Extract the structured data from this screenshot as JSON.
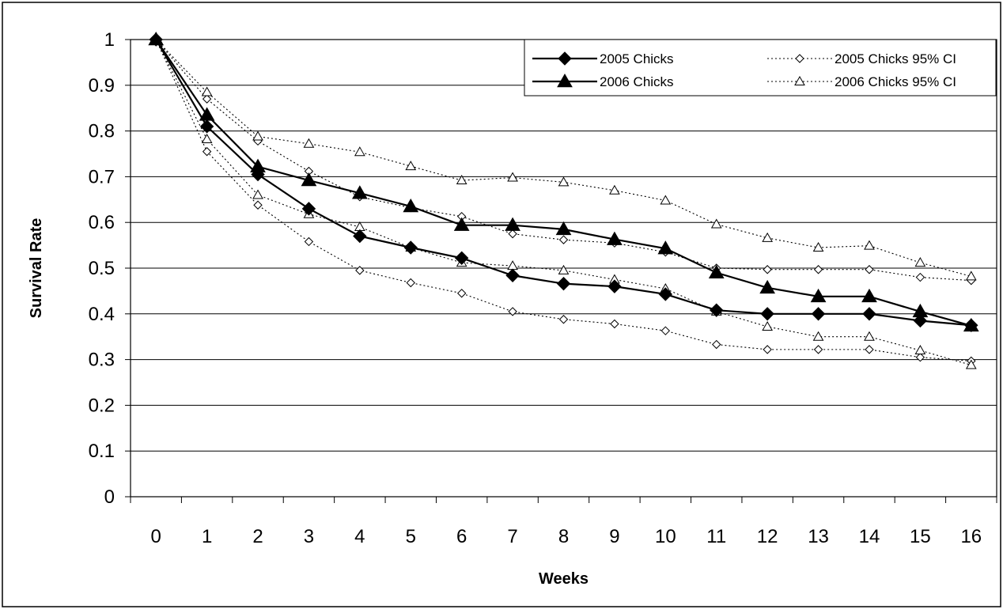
{
  "chart_data": {
    "type": "line",
    "title": "",
    "xlabel": "Weeks",
    "ylabel": "Survival Rate",
    "categories": [
      "0",
      "1",
      "2",
      "3",
      "4",
      "5",
      "6",
      "7",
      "8",
      "9",
      "10",
      "11",
      "12",
      "13",
      "14",
      "15",
      "16"
    ],
    "x": [
      0,
      1,
      2,
      3,
      4,
      5,
      6,
      7,
      8,
      9,
      10,
      11,
      12,
      13,
      14,
      15,
      16
    ],
    "ylim": [
      0,
      1
    ],
    "yticks": [
      "0",
      "0.1",
      "0.2",
      "0.3",
      "0.4",
      "0.5",
      "0.6",
      "0.7",
      "0.8",
      "0.9",
      "1"
    ],
    "grid": "horizontal",
    "legend_position": "top-right",
    "series": [
      {
        "name": "2005 Chicks",
        "marker": "diamond",
        "filled": true,
        "line": "solid",
        "color": "#000000",
        "values": [
          1.0,
          0.81,
          0.705,
          0.63,
          0.57,
          0.545,
          0.522,
          0.484,
          0.466,
          0.46,
          0.443,
          0.408,
          0.4,
          0.4,
          0.4,
          0.385,
          0.375
        ]
      },
      {
        "name": "2006 Chicks",
        "marker": "triangle",
        "filled": true,
        "line": "solid",
        "color": "#000000",
        "values": [
          1.0,
          0.835,
          0.722,
          0.692,
          0.664,
          0.635,
          0.594,
          0.594,
          0.585,
          0.563,
          0.543,
          0.49,
          0.457,
          0.438,
          0.438,
          0.405,
          0.374
        ]
      },
      {
        "name": "2005 Chicks 95% CI",
        "marker": "diamond",
        "filled": false,
        "line": "dotted",
        "color": "#000000",
        "values": [
          1.0,
          0.87,
          0.778,
          0.712,
          0.656,
          0.632,
          0.613,
          0.575,
          0.562,
          0.555,
          0.535,
          0.5,
          0.497,
          0.497,
          0.497,
          0.48,
          0.473
        ]
      },
      {
        "name": "2005 Chicks 95% CI",
        "legend": false,
        "marker": "diamond",
        "filled": false,
        "line": "dotted",
        "color": "#000000",
        "values": [
          1.0,
          0.755,
          0.638,
          0.558,
          0.495,
          0.468,
          0.445,
          0.405,
          0.388,
          0.378,
          0.363,
          0.333,
          0.322,
          0.322,
          0.322,
          0.305,
          0.297
        ]
      },
      {
        "name": "2006 Chicks 95% CI",
        "marker": "triangle",
        "filled": false,
        "line": "dotted",
        "color": "#000000",
        "values": [
          1.0,
          0.885,
          0.788,
          0.772,
          0.754,
          0.723,
          0.692,
          0.698,
          0.688,
          0.67,
          0.648,
          0.596,
          0.566,
          0.545,
          0.549,
          0.512,
          0.482
        ]
      },
      {
        "name": "2006 Chicks 95% CI",
        "legend": false,
        "marker": "triangle",
        "filled": false,
        "line": "dotted",
        "color": "#000000",
        "values": [
          1.0,
          0.782,
          0.66,
          0.618,
          0.59,
          0.545,
          0.512,
          0.505,
          0.495,
          0.475,
          0.455,
          0.405,
          0.372,
          0.35,
          0.35,
          0.32,
          0.288
        ]
      }
    ],
    "legend": [
      {
        "label": "2005 Chicks",
        "marker": "diamond",
        "filled": true,
        "line": "solid"
      },
      {
        "label": "2005 Chicks 95% CI",
        "marker": "diamond",
        "filled": false,
        "line": "dotted"
      },
      {
        "label": "2006 Chicks",
        "marker": "triangle",
        "filled": true,
        "line": "solid"
      },
      {
        "label": "2006 Chicks 95% CI",
        "marker": "triangle",
        "filled": false,
        "line": "dotted"
      }
    ]
  }
}
